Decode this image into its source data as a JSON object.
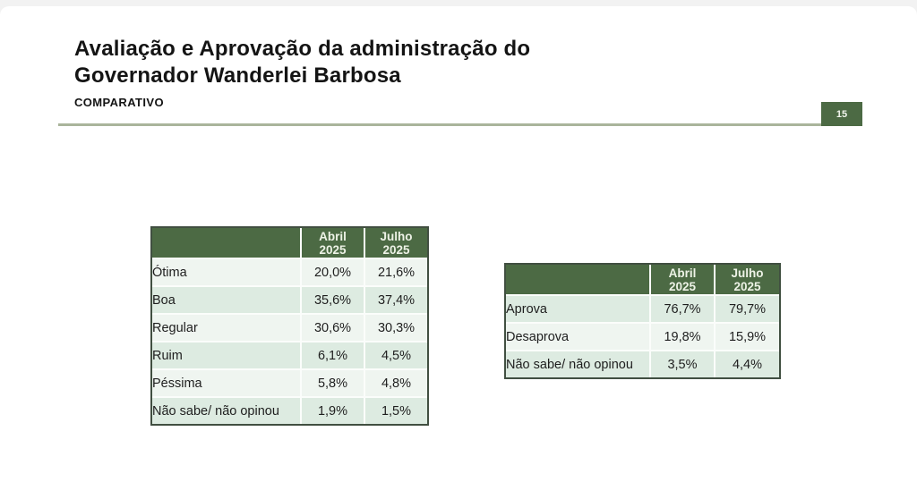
{
  "slide": {
    "title_line1": "Avaliação e Aprovação da administração do",
    "title_line2": "Governador Wanderlei Barbosa",
    "subtitle": "COMPARATIVO",
    "page_number": "15"
  },
  "colors": {
    "header_green": "#4c6a44",
    "row_light": "#eff5f0",
    "row_dark": "#ddebe1",
    "divider": "#a9b49b",
    "table_border": "#414f41"
  },
  "tables": {
    "evaluation": {
      "header": {
        "abril": {
          "month": "Abril",
          "year": "2025"
        },
        "julho": {
          "month": "Julho",
          "year": "2025"
        }
      },
      "rows": [
        {
          "label": "Ótima",
          "abril": "20,0%",
          "julho": "21,6%"
        },
        {
          "label": "Boa",
          "abril": "35,6%",
          "julho": "37,4%"
        },
        {
          "label": "Regular",
          "abril": "30,6%",
          "julho": "30,3%"
        },
        {
          "label": "Ruim",
          "abril": "6,1%",
          "julho": "4,5%"
        },
        {
          "label": "Péssima",
          "abril": "5,8%",
          "julho": "4,8%"
        },
        {
          "label": "Não sabe/ não opinou",
          "abril": "1,9%",
          "julho": "1,5%"
        }
      ]
    },
    "approval": {
      "header": {
        "abril": {
          "month": "Abril",
          "year": "2025"
        },
        "julho": {
          "month": "Julho",
          "year": "2025"
        }
      },
      "rows": [
        {
          "label": "Aprova",
          "abril": "76,7%",
          "julho": "79,7%"
        },
        {
          "label": "Desaprova",
          "abril": "19,8%",
          "julho": "15,9%"
        },
        {
          "label": "Não sabe/ não opinou",
          "abril": "3,5%",
          "julho": "4,4%"
        }
      ]
    }
  }
}
